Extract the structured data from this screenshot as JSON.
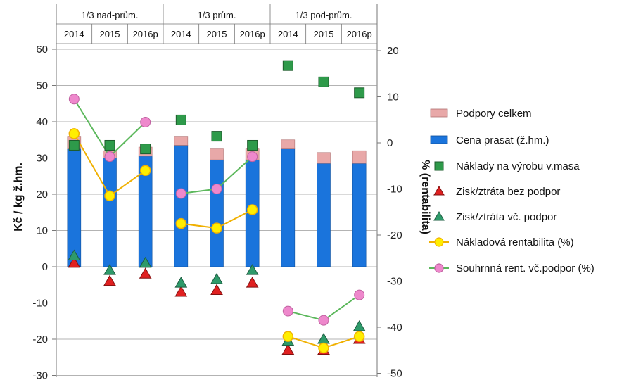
{
  "chart_data": {
    "type": "bar",
    "ylabel": "Kč / kg ž.hm.",
    "y2label": "% (rentabilita)",
    "ylim": [
      -30,
      60
    ],
    "y2lim": [
      -50,
      20
    ],
    "yticks": [
      -30,
      -20,
      -10,
      0,
      10,
      20,
      30,
      40,
      50,
      60
    ],
    "y2ticks": [
      -50,
      -40,
      -30,
      -20,
      -10,
      0,
      10,
      20
    ],
    "groups": [
      {
        "label": "1/3 nad-prům.",
        "years": [
          "2014",
          "2015",
          "2016p"
        ]
      },
      {
        "label": "1/3 prům.",
        "years": [
          "2014",
          "2015",
          "2016p"
        ]
      },
      {
        "label": "1/3 pod-prům.",
        "years": [
          "2014",
          "2015",
          "2016p"
        ]
      }
    ],
    "legend_position": "right",
    "grid": true,
    "series": [
      {
        "name": "Podpory celkem",
        "kind": "stacked-bar",
        "axis": "left",
        "color": "#e8a8a8",
        "values": [
          3.5,
          2.0,
          2.5,
          2.5,
          3.0,
          3.0,
          2.5,
          3.0,
          3.5
        ]
      },
      {
        "name": "Cena prasat (ž.hm.)",
        "kind": "bar",
        "axis": "left",
        "color": "#1a74dc",
        "values": [
          32.5,
          30.0,
          30.5,
          33.5,
          29.5,
          29.5,
          32.5,
          28.5,
          28.5
        ]
      },
      {
        "name": "Náklady na výrobu v.masa",
        "kind": "square-marker",
        "axis": "left",
        "color": "#2e9a4a",
        "values": [
          33.5,
          33.5,
          32.5,
          40.5,
          36.0,
          33.5,
          55.5,
          51.0,
          48.0
        ]
      },
      {
        "name": "Zisk/ztráta bez podpor",
        "kind": "triangle-marker",
        "axis": "left",
        "color": "#e02020",
        "values": [
          1.0,
          -4.0,
          -2.0,
          -7.0,
          -6.5,
          -4.5,
          -23.0,
          -23.0,
          -20.0
        ]
      },
      {
        "name": "Zisk/ztráta vč. podpor",
        "kind": "triangle-marker",
        "axis": "left",
        "color": "#2e9a6a",
        "values": [
          3.0,
          -1.0,
          1.0,
          -4.5,
          -3.5,
          -1.0,
          -20.5,
          -20.0,
          -16.5
        ]
      },
      {
        "name": "Nákladová rentabilita (%)",
        "kind": "line-marker",
        "axis": "right",
        "color": "#f0b000",
        "marker_fill": "#ffee00",
        "values": [
          2.0,
          -11.5,
          -6.0,
          -17.5,
          -18.5,
          -14.5,
          -42.0,
          -44.5,
          -42.0
        ]
      },
      {
        "name": "Souhrnná rent. vč.podpor (%)",
        "kind": "line-marker",
        "axis": "right",
        "color": "#5cb85c",
        "marker_fill": "#ee88cc",
        "values": [
          9.5,
          -3.0,
          4.5,
          -11.0,
          -10.0,
          -3.0,
          -36.5,
          -38.5,
          -33.0
        ]
      }
    ]
  }
}
